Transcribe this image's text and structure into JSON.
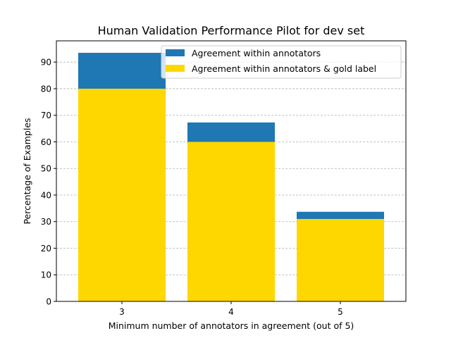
{
  "chart_data": {
    "type": "bar",
    "title": "Human Validation Performance Pilot for dev set",
    "xlabel": "Minimum number of annotators in agreement (out of 5)",
    "ylabel": "Percentage of Examples",
    "categories": [
      "3",
      "4",
      "5"
    ],
    "series": [
      {
        "name": "Agreement within annotators",
        "color": "#1f77b4",
        "values": [
          93.5,
          67.3,
          33.7
        ]
      },
      {
        "name": "Agreement within annotators & gold label",
        "color": "#ffd700",
        "values": [
          80.0,
          60.0,
          31.0
        ]
      }
    ],
    "ylim": [
      0,
      98
    ],
    "yticks": [
      0,
      10,
      20,
      30,
      40,
      50,
      60,
      70,
      80,
      90
    ],
    "grid": "y-dashed",
    "legend": "top-right",
    "bar_mode": "overlay"
  }
}
